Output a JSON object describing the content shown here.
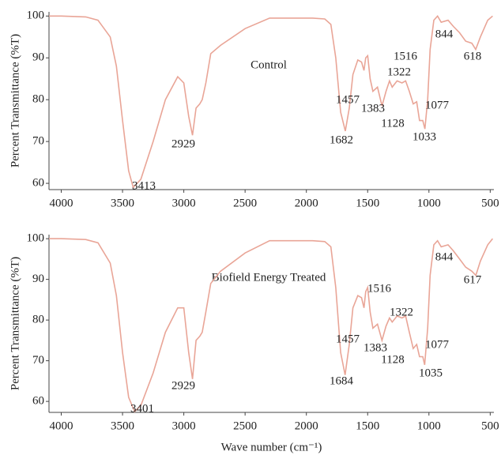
{
  "chart_data": [
    {
      "type": "line",
      "title": "Control",
      "ylabel": "Percent Transmittance (%T)",
      "color": "#e9a597",
      "x": [
        4100,
        4000,
        3800,
        3700,
        3600,
        3550,
        3500,
        3450,
        3413,
        3350,
        3250,
        3150,
        3050,
        3000,
        2960,
        2929,
        2900,
        2870,
        2850,
        2820,
        2780,
        2700,
        2500,
        2300,
        2100,
        1950,
        1850,
        1800,
        1760,
        1720,
        1682,
        1650,
        1620,
        1580,
        1550,
        1530,
        1516,
        1500,
        1480,
        1457,
        1420,
        1383,
        1350,
        1322,
        1300,
        1260,
        1220,
        1190,
        1160,
        1128,
        1100,
        1077,
        1050,
        1033,
        1010,
        990,
        960,
        930,
        900,
        844,
        800,
        750,
        700,
        650,
        618,
        580,
        520,
        480
      ],
      "values": [
        100,
        100,
        99.8,
        99,
        95,
        88,
        75,
        63,
        59,
        61,
        70,
        80,
        85.5,
        84,
        76,
        71.5,
        78,
        79,
        80,
        84,
        91,
        93,
        97,
        99.5,
        99.5,
        99.5,
        99.3,
        98,
        90,
        77,
        72.5,
        78,
        86,
        89.5,
        89,
        87,
        90,
        90.5,
        85,
        82,
        83,
        78.5,
        82,
        84.5,
        83,
        84.5,
        84,
        84.5,
        82,
        79,
        79.5,
        75,
        75,
        73,
        80,
        92,
        99,
        100,
        98.5,
        99,
        97.5,
        96,
        94,
        93.5,
        92,
        95,
        99,
        100
      ],
      "annotations": [
        3413,
        2929,
        1682,
        1457,
        1516,
        1383,
        1322,
        1128,
        1077,
        1033,
        844,
        618
      ],
      "xlim": [
        4100,
        470
      ],
      "xticks": [
        4000,
        3500,
        3000,
        2500,
        2000,
        1500,
        1000,
        500
      ],
      "ylim": [
        58.5,
        101
      ],
      "yticks": [
        60,
        70,
        80,
        90,
        100
      ]
    },
    {
      "type": "line",
      "title": "Biofield Energy Treated",
      "ylabel": "Percent Transmittance (%T)",
      "xlabel": "Wave number (cm⁻¹)",
      "color": "#e9a597",
      "x": [
        4100,
        4000,
        3800,
        3700,
        3600,
        3550,
        3500,
        3450,
        3401,
        3350,
        3250,
        3150,
        3050,
        3000,
        2960,
        2929,
        2900,
        2870,
        2850,
        2820,
        2780,
        2700,
        2500,
        2300,
        2100,
        1950,
        1850,
        1800,
        1760,
        1720,
        1684,
        1650,
        1620,
        1580,
        1550,
        1530,
        1516,
        1500,
        1480,
        1457,
        1420,
        1383,
        1350,
        1322,
        1300,
        1260,
        1220,
        1190,
        1160,
        1128,
        1100,
        1077,
        1050,
        1035,
        1010,
        990,
        960,
        930,
        900,
        844,
        800,
        750,
        700,
        650,
        617,
        580,
        520,
        480
      ],
      "values": [
        100,
        100,
        99.8,
        99,
        94,
        86,
        72,
        61,
        57.5,
        59,
        67,
        77,
        83,
        83,
        72,
        65.5,
        75,
        76,
        77,
        82,
        89,
        92,
        96.5,
        99.5,
        99.5,
        99.5,
        99.3,
        98,
        88,
        72,
        66.5,
        74,
        83,
        86,
        85.5,
        83,
        87,
        88,
        82,
        78,
        79,
        75,
        78.5,
        80.5,
        79.5,
        81,
        80.5,
        81,
        77,
        73,
        74,
        71,
        71,
        69,
        78,
        91,
        98.5,
        99.5,
        98,
        98.5,
        97,
        95,
        93,
        92,
        91,
        94.5,
        98.5,
        100
      ],
      "annotations": [
        3401,
        2929,
        1684,
        1457,
        1516,
        1383,
        1322,
        1128,
        1077,
        1035,
        844,
        617
      ],
      "xlim": [
        4100,
        470
      ],
      "xticks": [
        4000,
        3500,
        3000,
        2500,
        2000,
        1500,
        1000,
        500
      ],
      "ylim": [
        57.3,
        101
      ],
      "yticks": [
        60,
        70,
        80,
        90,
        100
      ]
    }
  ]
}
